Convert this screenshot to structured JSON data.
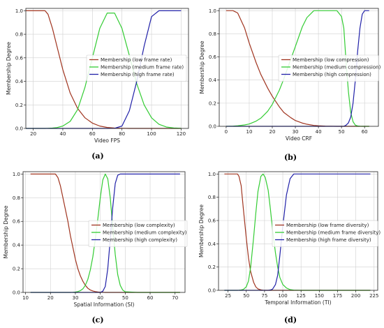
{
  "figure": {
    "panels": [
      "a",
      "b",
      "c",
      "d"
    ]
  },
  "chart_data": [
    {
      "id": "a",
      "type": "line",
      "panel_label": "(a)",
      "xlabel": "Video FPS",
      "ylabel": "Membership Degree",
      "xlim": [
        15,
        125
      ],
      "ylim": [
        0,
        1.02
      ],
      "xticks": [
        20,
        40,
        60,
        80,
        100,
        120
      ],
      "yticks": [
        0.0,
        0.2,
        0.4,
        0.6,
        0.8,
        1.0
      ],
      "grid": true,
      "legend_position": "center-right",
      "x": [
        15,
        20,
        25,
        28,
        30,
        33,
        36,
        40,
        45,
        50,
        55,
        60,
        65,
        70,
        75,
        80,
        85,
        90,
        95,
        100,
        105,
        110,
        115,
        120
      ],
      "series": [
        {
          "name": "Membership (low frame rate)",
          "color": "#a0341f",
          "values": [
            1.0,
            1.0,
            1.0,
            1.0,
            0.97,
            0.85,
            0.7,
            0.5,
            0.3,
            0.17,
            0.09,
            0.045,
            0.02,
            0.008,
            0.003,
            0.001,
            0,
            0,
            0,
            0,
            0,
            0,
            0,
            0
          ]
        },
        {
          "name": "Membership (medium frame rate)",
          "color": "#33cc33",
          "values": [
            0.0,
            0.0,
            0.0,
            0.0,
            0.001,
            0.003,
            0.007,
            0.02,
            0.06,
            0.16,
            0.35,
            0.6,
            0.85,
            0.98,
            0.98,
            0.85,
            0.62,
            0.38,
            0.2,
            0.09,
            0.035,
            0.012,
            0.004,
            0.001
          ]
        },
        {
          "name": "Membership (high frame rate)",
          "color": "#2020a8",
          "values": [
            0,
            0,
            0,
            0,
            0,
            0,
            0,
            0,
            0,
            0,
            0,
            0,
            0,
            0,
            0.001,
            0.02,
            0.15,
            0.4,
            0.7,
            0.95,
            1.0,
            1.0,
            1.0,
            1.0
          ]
        }
      ]
    },
    {
      "id": "b",
      "type": "line",
      "panel_label": "(b)",
      "xlabel": "Video CRF",
      "ylabel": "Membership Degree",
      "xlim": [
        -3,
        66
      ],
      "ylim": [
        0,
        1.02
      ],
      "xticks": [
        0,
        10,
        20,
        30,
        40,
        50,
        60
      ],
      "yticks": [
        0.0,
        0.2,
        0.4,
        0.6,
        0.8,
        1.0
      ],
      "grid": true,
      "legend_position": "center-right",
      "x": [
        0,
        3,
        5,
        8,
        10,
        13,
        15,
        18,
        20,
        23,
        25,
        28,
        30,
        33,
        35,
        38,
        40,
        43,
        45,
        48,
        50,
        51,
        52,
        53,
        54,
        55,
        56,
        57,
        58,
        59,
        60,
        61,
        62
      ],
      "series": [
        {
          "name": "Membership (low compression)",
          "color": "#a0341f",
          "values": [
            1.0,
            1.0,
            0.98,
            0.85,
            0.72,
            0.55,
            0.45,
            0.33,
            0.26,
            0.17,
            0.12,
            0.075,
            0.05,
            0.028,
            0.018,
            0.008,
            0.005,
            0.002,
            0.001,
            0,
            0,
            0,
            0,
            0,
            0,
            0,
            0,
            0,
            0,
            0,
            0,
            0,
            0
          ]
        },
        {
          "name": "Membership (medium compression)",
          "color": "#33cc33",
          "values": [
            0.0,
            0.002,
            0.005,
            0.012,
            0.02,
            0.045,
            0.07,
            0.13,
            0.19,
            0.31,
            0.41,
            0.58,
            0.69,
            0.86,
            0.94,
            1.0,
            1.0,
            1.0,
            1.0,
            1.0,
            0.95,
            0.85,
            0.55,
            0.3,
            0.12,
            0.04,
            0.01,
            0.003,
            0.001,
            0,
            0,
            0,
            0
          ]
        },
        {
          "name": "Membership (high compression)",
          "color": "#2020a8",
          "values": [
            0,
            0,
            0,
            0,
            0,
            0,
            0,
            0,
            0,
            0,
            0,
            0,
            0,
            0,
            0,
            0,
            0,
            0,
            0,
            0,
            0,
            0,
            0.01,
            0.03,
            0.08,
            0.2,
            0.4,
            0.65,
            0.85,
            0.97,
            1.0,
            1.0,
            1.0
          ]
        }
      ]
    },
    {
      "id": "c",
      "type": "line",
      "panel_label": "(c)",
      "xlabel": "Spatial Information (SI)",
      "ylabel": "Membership Degree",
      "xlim": [
        9,
        74
      ],
      "ylim": [
        0,
        1.02
      ],
      "xticks": [
        10,
        20,
        30,
        40,
        50,
        60,
        70
      ],
      "yticks": [
        0.0,
        0.2,
        0.4,
        0.6,
        0.8,
        1.0
      ],
      "grid": true,
      "legend_position": "center-right",
      "x": [
        12,
        15,
        18,
        21,
        22,
        23,
        24,
        25,
        26,
        27,
        28,
        29,
        30,
        31,
        32,
        33,
        34,
        35,
        36,
        37,
        38,
        39,
        40,
        41,
        42,
        43,
        44,
        45,
        46,
        47,
        48,
        49,
        50,
        55,
        60,
        65,
        70,
        72
      ],
      "series": [
        {
          "name": "Membership (low complexity)",
          "color": "#a0341f",
          "values": [
            1.0,
            1.0,
            1.0,
            1.0,
            1.0,
            0.97,
            0.9,
            0.8,
            0.7,
            0.6,
            0.48,
            0.38,
            0.28,
            0.2,
            0.14,
            0.095,
            0.06,
            0.035,
            0.02,
            0.012,
            0.007,
            0.004,
            0.002,
            0.001,
            0,
            0,
            0,
            0,
            0,
            0,
            0,
            0,
            0,
            0,
            0,
            0,
            0,
            0
          ]
        },
        {
          "name": "Membership (medium complexity)",
          "color": "#33cc33",
          "values": [
            0,
            0,
            0,
            0,
            0,
            0,
            0,
            0,
            0,
            0,
            0,
            0.001,
            0.003,
            0.007,
            0.015,
            0.03,
            0.06,
            0.11,
            0.19,
            0.3,
            0.45,
            0.62,
            0.8,
            0.95,
            1.0,
            0.96,
            0.8,
            0.55,
            0.32,
            0.15,
            0.06,
            0.02,
            0.005,
            0,
            0,
            0,
            0,
            0
          ]
        },
        {
          "name": "Membership (high complexity)",
          "color": "#2020a8",
          "values": [
            0,
            0,
            0,
            0,
            0,
            0,
            0,
            0,
            0,
            0,
            0,
            0,
            0,
            0,
            0,
            0,
            0,
            0,
            0,
            0,
            0,
            0,
            0,
            0.01,
            0.05,
            0.2,
            0.45,
            0.72,
            0.92,
            0.99,
            1.0,
            1.0,
            1.0,
            1.0,
            1.0,
            1.0,
            1.0,
            1.0
          ]
        }
      ]
    },
    {
      "id": "d",
      "type": "line",
      "panel_label": "(d)",
      "xlabel": "Temporal Information (TI)",
      "ylabel": "Membership Degree",
      "xlim": [
        12,
        230
      ],
      "ylim": [
        0,
        1.02
      ],
      "xticks": [
        25,
        50,
        75,
        100,
        125,
        150,
        175,
        200,
        225
      ],
      "yticks": [
        0.0,
        0.2,
        0.4,
        0.6,
        0.8,
        1.0
      ],
      "grid": true,
      "legend_position": "center-right",
      "x": [
        20,
        30,
        35,
        38,
        40,
        43,
        46,
        50,
        53,
        56,
        60,
        63,
        66,
        70,
        73,
        76,
        80,
        83,
        86,
        90,
        93,
        96,
        100,
        105,
        110,
        115,
        120,
        125,
        130,
        150,
        175,
        200,
        220
      ],
      "series": [
        {
          "name": "Membership (low frame diversity)",
          "color": "#a0341f",
          "values": [
            1.0,
            1.0,
            1.0,
            1.0,
            0.98,
            0.9,
            0.7,
            0.45,
            0.28,
            0.16,
            0.07,
            0.03,
            0.012,
            0.004,
            0.001,
            0,
            0,
            0,
            0,
            0,
            0,
            0,
            0,
            0,
            0,
            0,
            0,
            0,
            0,
            0,
            0,
            0,
            0
          ]
        },
        {
          "name": "Membership (medium frame diversity)",
          "color": "#33cc33",
          "values": [
            0,
            0,
            0,
            0,
            0.001,
            0.003,
            0.008,
            0.03,
            0.08,
            0.2,
            0.45,
            0.66,
            0.85,
            0.98,
            1.0,
            0.97,
            0.86,
            0.7,
            0.52,
            0.32,
            0.2,
            0.11,
            0.05,
            0.02,
            0.006,
            0.002,
            0.001,
            0,
            0,
            0,
            0,
            0,
            0
          ]
        },
        {
          "name": "Membership (high frame diversity)",
          "color": "#2020a8",
          "values": [
            0,
            0,
            0,
            0,
            0,
            0,
            0,
            0,
            0,
            0,
            0,
            0,
            0,
            0,
            0,
            0,
            0,
            0.003,
            0.01,
            0.05,
            0.13,
            0.3,
            0.55,
            0.82,
            0.96,
            1.0,
            1.0,
            1.0,
            1.0,
            1.0,
            1.0,
            1.0,
            1.0
          ]
        }
      ]
    }
  ]
}
